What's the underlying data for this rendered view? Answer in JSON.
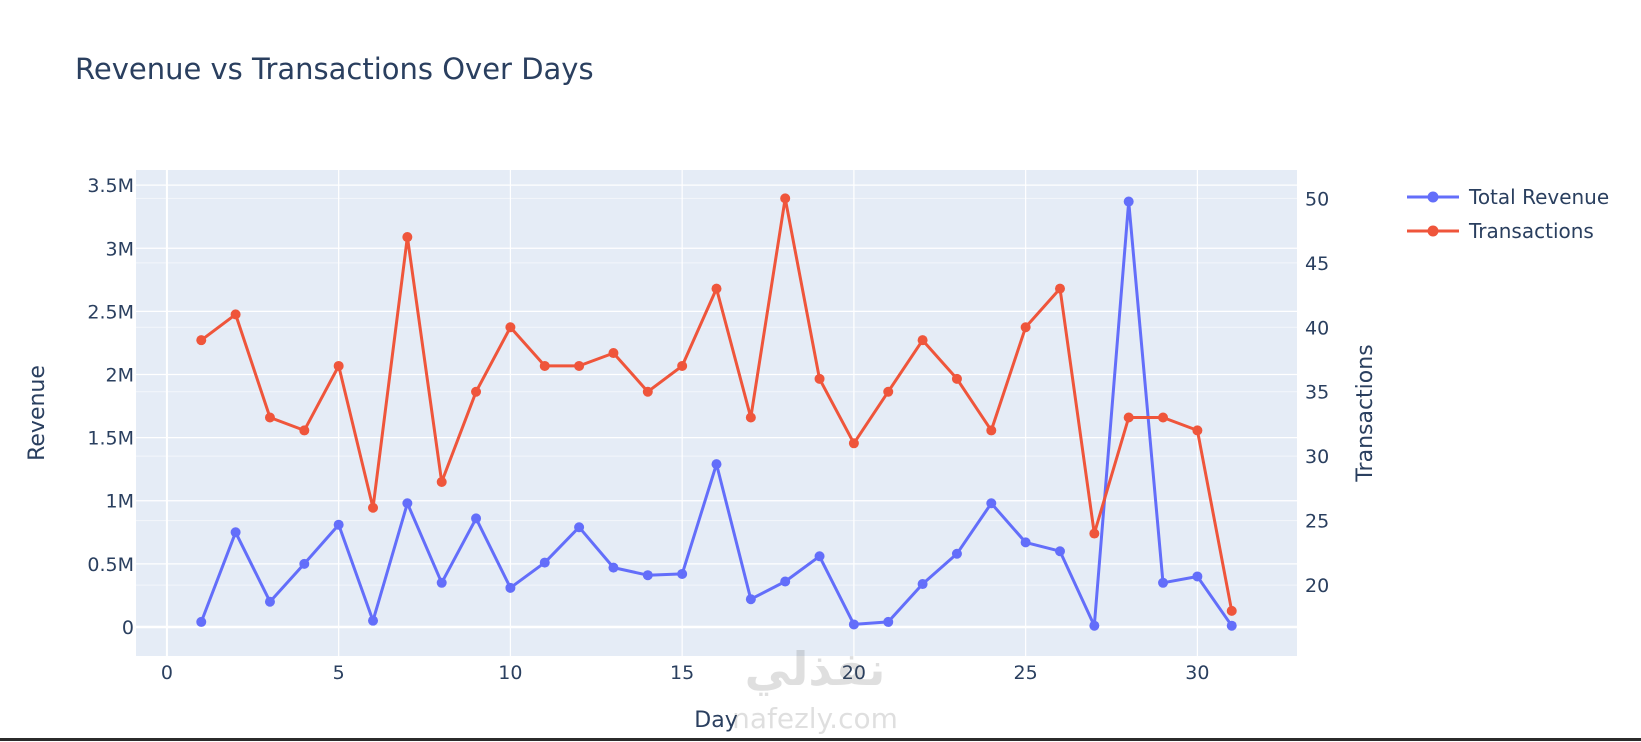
{
  "chart_data": {
    "type": "line",
    "title": "Revenue vs Transactions Over Days",
    "xlabel": "Day",
    "ylabel": "Revenue",
    "y2label": "Transactions",
    "xlim": [
      -0.9,
      32.9
    ],
    "ylim": [
      -230000,
      3620000
    ],
    "y2lim": [
      14.5,
      52.2
    ],
    "x_ticks": [
      0,
      5,
      10,
      15,
      20,
      25,
      30
    ],
    "x_tick_labels": [
      "0",
      "5",
      "10",
      "15",
      "20",
      "25",
      "30"
    ],
    "y_ticks": [
      0,
      500000,
      1000000,
      1500000,
      2000000,
      2500000,
      3000000,
      3500000
    ],
    "y_tick_labels": [
      "0",
      "0.5M",
      "1M",
      "1.5M",
      "2M",
      "2.5M",
      "3M",
      "3.5M"
    ],
    "y2_ticks": [
      20,
      25,
      30,
      35,
      40,
      45,
      50
    ],
    "y2_tick_labels": [
      "20",
      "25",
      "30",
      "35",
      "40",
      "45",
      "50"
    ],
    "grid": true,
    "legend_position": "top-right",
    "x": [
      1,
      2,
      3,
      4,
      5,
      6,
      7,
      8,
      9,
      10,
      11,
      12,
      13,
      14,
      15,
      16,
      17,
      18,
      19,
      20,
      21,
      22,
      23,
      24,
      25,
      26,
      27,
      28,
      29,
      30,
      31
    ],
    "series": [
      {
        "name": "Total Revenue",
        "axis": "y",
        "color": "#636efa",
        "values": [
          40000,
          750000,
          200000,
          500000,
          810000,
          50000,
          980000,
          350000,
          860000,
          310000,
          510000,
          790000,
          470000,
          410000,
          420000,
          1290000,
          220000,
          360000,
          560000,
          20000,
          40000,
          340000,
          580000,
          980000,
          670000,
          600000,
          10000,
          3370000,
          350000,
          400000,
          10000
        ]
      },
      {
        "name": "Transactions",
        "axis": "y2",
        "color": "#ef553b",
        "values": [
          39,
          41,
          33,
          32,
          37,
          26,
          47,
          28,
          35,
          40,
          37,
          37,
          38,
          35,
          37,
          43,
          33,
          50,
          36,
          31,
          35,
          39,
          36,
          32,
          40,
          43,
          24,
          33,
          33,
          32,
          18
        ]
      }
    ],
    "background_color": "#e5ecf6",
    "grid_color": "#ffffff"
  },
  "watermark": {
    "arabic_text": "نفذلي",
    "latin_text": "nafezly.com"
  }
}
